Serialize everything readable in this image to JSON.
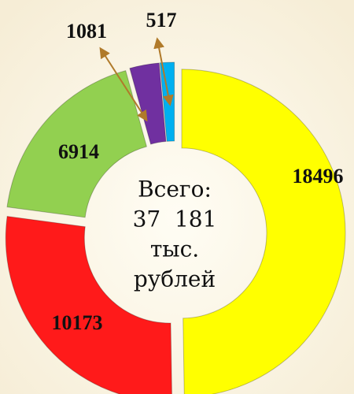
{
  "chart_data": {
    "type": "donut",
    "values": [
      18496,
      10173,
      6914,
      1081,
      517
    ],
    "colors": [
      "#ffff00",
      "#ff1a1a",
      "#92d050",
      "#7030a0",
      "#00b0f0"
    ],
    "center_text": [
      "Всего:",
      "37  181",
      "тыс.",
      "рублей"
    ]
  }
}
